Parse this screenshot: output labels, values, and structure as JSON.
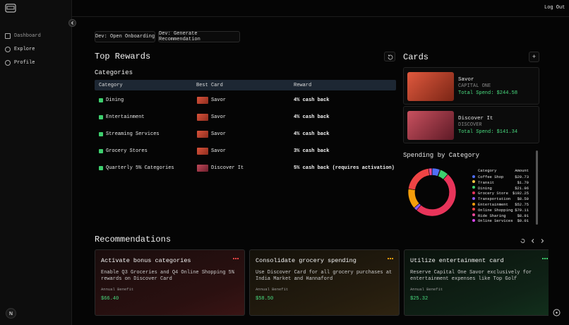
{
  "header": {
    "logout": "Log Out"
  },
  "sidebar": {
    "items": [
      "Dashboard",
      "Explore",
      "Profile"
    ]
  },
  "dev_buttons": [
    "Dev: Open Onboarding",
    "Dev: Generate Recommendation"
  ],
  "top_rewards": {
    "title": "Top Rewards",
    "subtitle": "Categories",
    "columns": [
      "Category",
      "Best Card",
      "Reward"
    ],
    "rows": [
      {
        "category": "Dining",
        "card": "Savor",
        "reward": "4% cash back"
      },
      {
        "category": "Entertainment",
        "card": "Savor",
        "reward": "4% cash back"
      },
      {
        "category": "Streaming Services",
        "card": "Savor",
        "reward": "4% cash back"
      },
      {
        "category": "Grocery Stores",
        "card": "Savor",
        "reward": "3% cash back"
      },
      {
        "category": "Quarterly 5% Categories",
        "card": "Discover It",
        "reward": "5% cash back (requires activation)"
      }
    ]
  },
  "cards": {
    "title": "Cards",
    "items": [
      {
        "name": "Savor",
        "issuer": "CAPITAL ONE",
        "spend": "Total Spend: $244.58"
      },
      {
        "name": "Discover It",
        "issuer": "DISCOVER",
        "spend": "Total Spend: $141.34"
      }
    ]
  },
  "spending": {
    "title": "Spending by Category",
    "columns": [
      "Category",
      "Amount"
    ],
    "items": [
      {
        "name": "Coffee Shop",
        "value": 20.73,
        "label": "$20.73",
        "color": "#4f6ef7"
      },
      {
        "name": "Transit",
        "value": 1.7,
        "label": "$1.70",
        "color": "#f5c542"
      },
      {
        "name": "Dining",
        "value": 21.96,
        "label": "$21.96",
        "color": "#3ecf6e"
      },
      {
        "name": "Grocery Store",
        "value": 192.25,
        "label": "$192.25",
        "color": "#e8345a"
      },
      {
        "name": "Transportation",
        "value": 8.5,
        "label": "$8.50",
        "color": "#8b5cf6"
      },
      {
        "name": "Entertainment",
        "value": 52.75,
        "label": "$52.75",
        "color": "#f59e0b"
      },
      {
        "name": "Online Shopping",
        "value": 79.11,
        "label": "$79.11",
        "color": "#ef4444"
      },
      {
        "name": "Ride Sharing",
        "value": 8.91,
        "label": "$8.91",
        "color": "#ec4899"
      },
      {
        "name": "Online Services",
        "value": 0.01,
        "label": "$0.01",
        "color": "#d946ef"
      }
    ]
  },
  "recommendations": {
    "title": "Recommendations",
    "items": [
      {
        "title": "Activate bonus categories",
        "description": "Enable Q3 Groceries and Q4 Online Shopping 5% rewards on Discover Card",
        "benefit_label": "Annual Benefit",
        "benefit": "$66.40"
      },
      {
        "title": "Consolidate grocery spending",
        "description": "Use Discover Card for all grocery purchases at India Market and Hannaford",
        "benefit_label": "Annual Benefit",
        "benefit": "$58.50"
      },
      {
        "title": "Utilize entertainment card",
        "description": "Reserve Capital One Savor exclusively for entertainment expenses like Top Golf",
        "benefit_label": "Annual Benefit",
        "benefit": "$25.32"
      }
    ]
  }
}
